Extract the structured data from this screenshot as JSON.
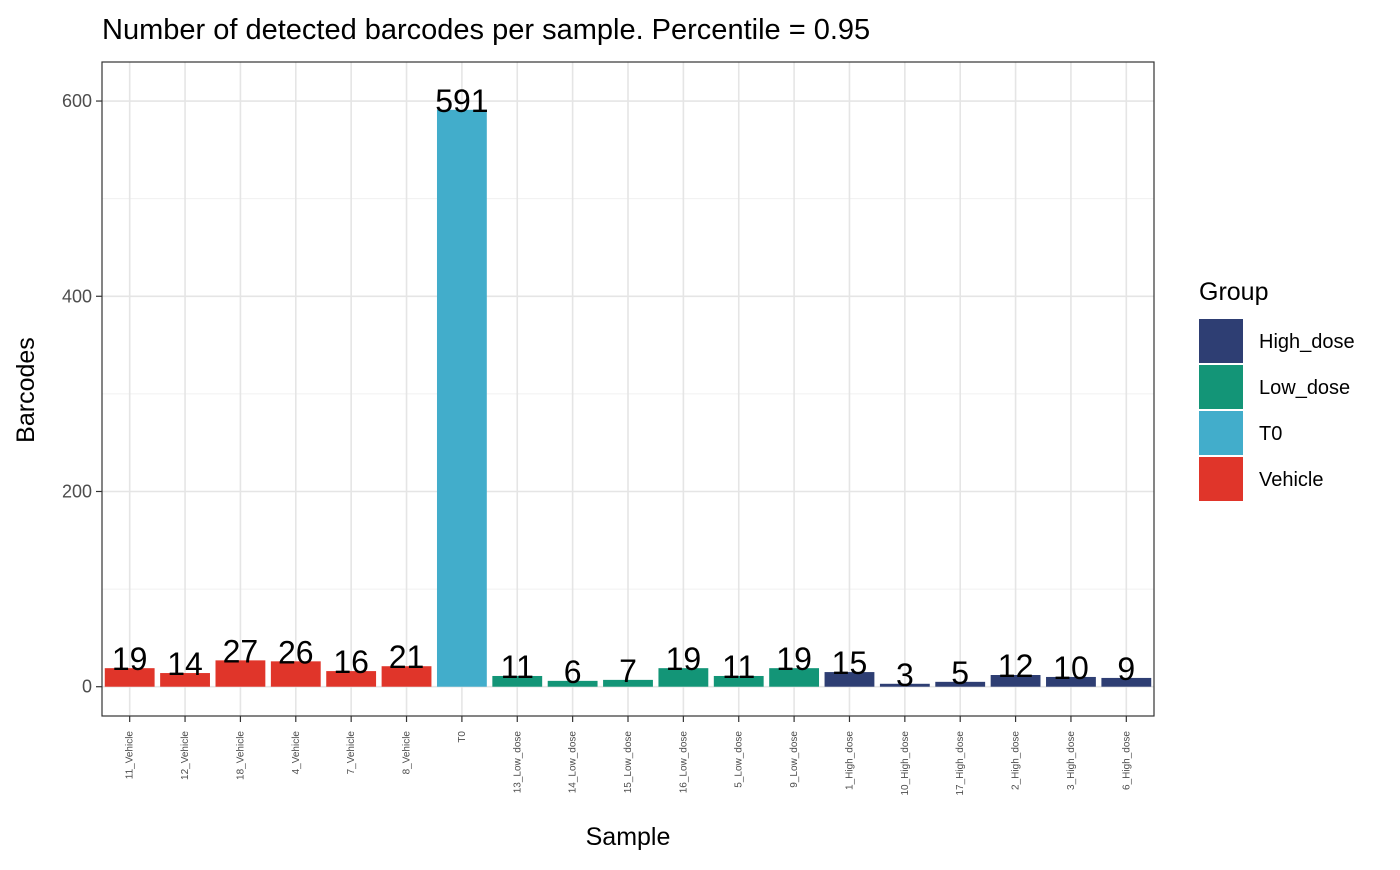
{
  "chart_data": {
    "type": "bar",
    "title": "Number of detected barcodes per sample. Percentile = 0.95",
    "xlabel": "Sample",
    "ylabel": "Barcodes",
    "ylim": [
      -30,
      640
    ],
    "yticks": [
      0,
      200,
      400,
      600
    ],
    "grid": true,
    "legend": {
      "title": "Group",
      "position": "right",
      "entries": [
        {
          "name": "High_dose",
          "color": "#2E3E73"
        },
        {
          "name": "Low_dose",
          "color": "#139577"
        },
        {
          "name": "T0",
          "color": "#42ADCB"
        },
        {
          "name": "Vehicle",
          "color": "#E0352A"
        }
      ]
    },
    "categories": [
      "11_Vehicle",
      "12_Vehicle",
      "18_Vehicle",
      "4_Vehicle",
      "7_Vehicle",
      "8_Vehicle",
      "T0",
      "13_Low_dose",
      "14_Low_dose",
      "15_Low_dose",
      "16_Low_dose",
      "5_Low_dose",
      "9_Low_dose",
      "1_High_dose",
      "10_High_dose",
      "17_High_dose",
      "2_High_dose",
      "3_High_dose",
      "6_High_dose"
    ],
    "values": [
      19,
      14,
      27,
      26,
      16,
      21,
      591,
      11,
      6,
      7,
      19,
      11,
      19,
      15,
      3,
      5,
      12,
      10,
      9
    ],
    "groups": [
      "Vehicle",
      "Vehicle",
      "Vehicle",
      "Vehicle",
      "Vehicle",
      "Vehicle",
      "T0",
      "Low_dose",
      "Low_dose",
      "Low_dose",
      "Low_dose",
      "Low_dose",
      "Low_dose",
      "High_dose",
      "High_dose",
      "High_dose",
      "High_dose",
      "High_dose",
      "High_dose"
    ],
    "data_labels": [
      "19",
      "14",
      "27",
      "26",
      "16",
      "21",
      "591",
      "11",
      "6",
      "7",
      "19",
      "11",
      "19",
      "15",
      "3",
      "5",
      "12",
      "10",
      "9"
    ]
  }
}
